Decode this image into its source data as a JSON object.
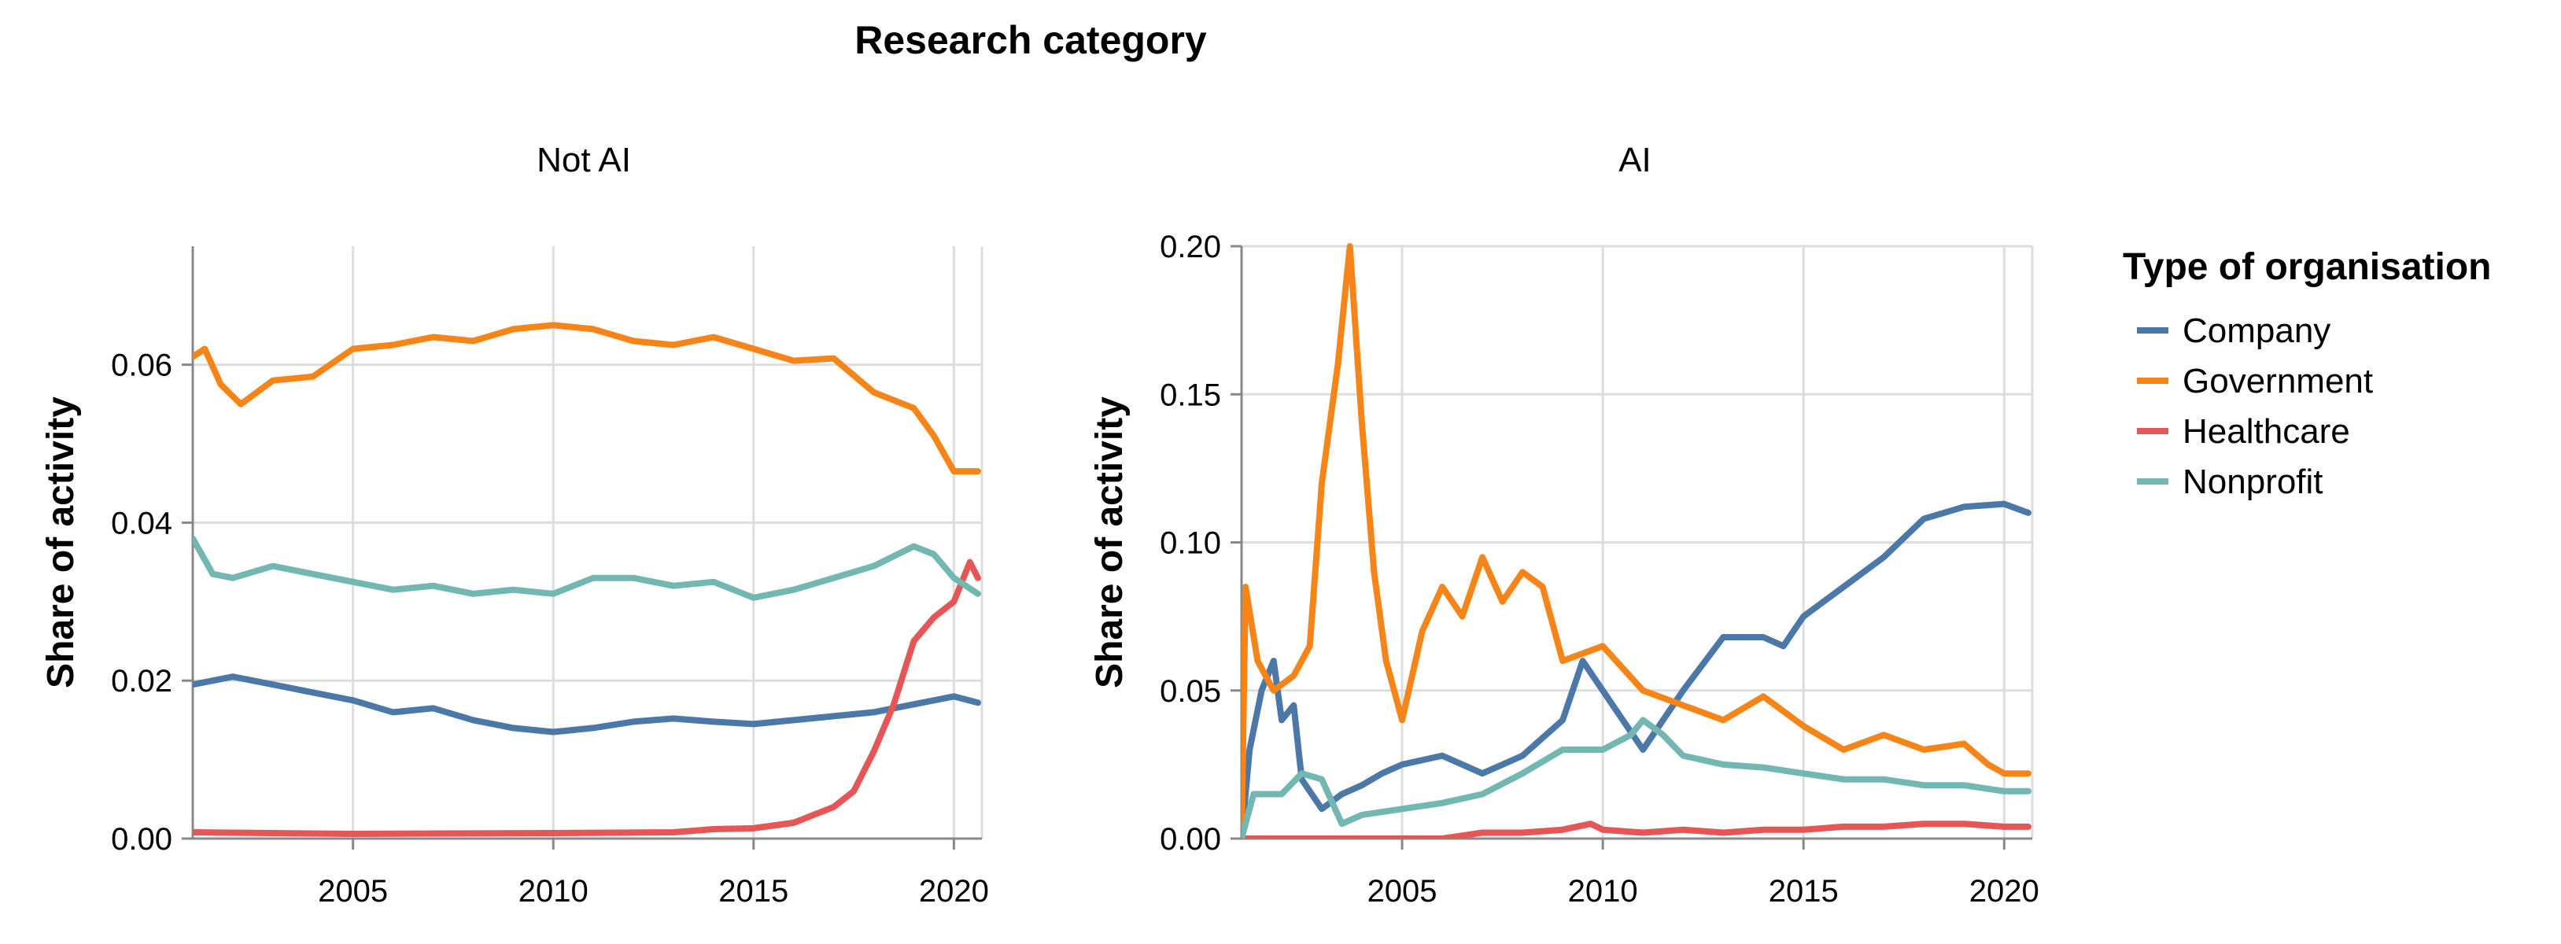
{
  "chart_data": {
    "type": "line",
    "title": "Research category",
    "legend": {
      "title": "Type of organisation",
      "position": "right",
      "entries": [
        {
          "name": "Company",
          "color": "#4c78a8"
        },
        {
          "name": "Government",
          "color": "#f58518"
        },
        {
          "name": "Healthcare",
          "color": "#e45756"
        },
        {
          "name": "Nonprofit",
          "color": "#72b7b2"
        }
      ]
    },
    "x": {
      "xlim": [
        2001,
        2020.7
      ],
      "ticks": [
        2005,
        2010,
        2015,
        2020
      ],
      "tick_labels": [
        "2005",
        "2010",
        "2015",
        "2020"
      ]
    },
    "facets": [
      {
        "label": "Not AI",
        "ylabel": "Share of activity",
        "ylim": [
          0,
          0.075
        ],
        "yticks": [
          0,
          0.02,
          0.04,
          0.06
        ],
        "ytick_labels": [
          "0.00",
          "0.02",
          "0.04",
          "0.06"
        ],
        "grid": true,
        "series": [
          {
            "name": "Company",
            "points": [
              [
                2001,
                0.0195
              ],
              [
                2002,
                0.0205
              ],
              [
                2003,
                0.0195
              ],
              [
                2004,
                0.0185
              ],
              [
                2005,
                0.0175
              ],
              [
                2006,
                0.016
              ],
              [
                2007,
                0.0165
              ],
              [
                2008,
                0.015
              ],
              [
                2009,
                0.014
              ],
              [
                2010,
                0.0135
              ],
              [
                2011,
                0.014
              ],
              [
                2012,
                0.0148
              ],
              [
                2013,
                0.0152
              ],
              [
                2014,
                0.0148
              ],
              [
                2015,
                0.0145
              ],
              [
                2016,
                0.015
              ],
              [
                2017,
                0.0155
              ],
              [
                2018,
                0.016
              ],
              [
                2019,
                0.017
              ],
              [
                2020,
                0.018
              ],
              [
                2020.6,
                0.0172
              ]
            ]
          },
          {
            "name": "Government",
            "points": [
              [
                2001,
                0.061
              ],
              [
                2001.3,
                0.062
              ],
              [
                2001.7,
                0.0575
              ],
              [
                2002.2,
                0.055
              ],
              [
                2003,
                0.058
              ],
              [
                2004,
                0.0585
              ],
              [
                2005,
                0.062
              ],
              [
                2006,
                0.0625
              ],
              [
                2007,
                0.0635
              ],
              [
                2008,
                0.063
              ],
              [
                2009,
                0.0645
              ],
              [
                2010,
                0.065
              ],
              [
                2011,
                0.0645
              ],
              [
                2012,
                0.063
              ],
              [
                2013,
                0.0625
              ],
              [
                2014,
                0.0635
              ],
              [
                2015,
                0.062
              ],
              [
                2016,
                0.0605
              ],
              [
                2017,
                0.0608
              ],
              [
                2018,
                0.0565
              ],
              [
                2019,
                0.0545
              ],
              [
                2019.5,
                0.051
              ],
              [
                2020,
                0.0465
              ],
              [
                2020.6,
                0.0465
              ]
            ]
          },
          {
            "name": "Healthcare",
            "points": [
              [
                2001,
                0.0008
              ],
              [
                2005,
                0.0006
              ],
              [
                2010,
                0.0007
              ],
              [
                2013,
                0.0008
              ],
              [
                2014,
                0.0012
              ],
              [
                2015,
                0.0013
              ],
              [
                2016,
                0.002
              ],
              [
                2016.5,
                0.003
              ],
              [
                2017,
                0.004
              ],
              [
                2017.5,
                0.006
              ],
              [
                2018,
                0.011
              ],
              [
                2018.5,
                0.017
              ],
              [
                2019,
                0.025
              ],
              [
                2019.5,
                0.028
              ],
              [
                2020,
                0.03
              ],
              [
                2020.4,
                0.035
              ],
              [
                2020.6,
                0.033
              ]
            ]
          },
          {
            "name": "Nonprofit",
            "points": [
              [
                2001,
                0.038
              ],
              [
                2001.5,
                0.0335
              ],
              [
                2002,
                0.033
              ],
              [
                2003,
                0.0345
              ],
              [
                2004,
                0.0335
              ],
              [
                2005,
                0.0325
              ],
              [
                2006,
                0.0315
              ],
              [
                2007,
                0.032
              ],
              [
                2008,
                0.031
              ],
              [
                2009,
                0.0315
              ],
              [
                2010,
                0.031
              ],
              [
                2011,
                0.033
              ],
              [
                2012,
                0.033
              ],
              [
                2013,
                0.032
              ],
              [
                2014,
                0.0325
              ],
              [
                2015,
                0.0305
              ],
              [
                2016,
                0.0315
              ],
              [
                2017,
                0.033
              ],
              [
                2018,
                0.0345
              ],
              [
                2019,
                0.037
              ],
              [
                2019.5,
                0.036
              ],
              [
                2020,
                0.033
              ],
              [
                2020.6,
                0.031
              ]
            ]
          }
        ]
      },
      {
        "label": "AI",
        "ylabel": "Share of activity",
        "ylim": [
          0,
          0.2
        ],
        "yticks": [
          0,
          0.05,
          0.1,
          0.15,
          0.2
        ],
        "ytick_labels": [
          "0.00",
          "0.05",
          "0.10",
          "0.15",
          "0.20"
        ],
        "grid": true,
        "series": [
          {
            "name": "Company",
            "points": [
              [
                2001,
                0.0
              ],
              [
                2001.2,
                0.03
              ],
              [
                2001.5,
                0.05
              ],
              [
                2001.8,
                0.06
              ],
              [
                2002,
                0.04
              ],
              [
                2002.3,
                0.045
              ],
              [
                2002.5,
                0.02
              ],
              [
                2003,
                0.01
              ],
              [
                2003.5,
                0.015
              ],
              [
                2004,
                0.018
              ],
              [
                2004.5,
                0.022
              ],
              [
                2005,
                0.025
              ],
              [
                2006,
                0.028
              ],
              [
                2007,
                0.022
              ],
              [
                2008,
                0.028
              ],
              [
                2009,
                0.04
              ],
              [
                2009.5,
                0.06
              ],
              [
                2010,
                0.05
              ],
              [
                2010.5,
                0.04
              ],
              [
                2011,
                0.03
              ],
              [
                2012,
                0.05
              ],
              [
                2013,
                0.068
              ],
              [
                2014,
                0.068
              ],
              [
                2014.5,
                0.065
              ],
              [
                2015,
                0.075
              ],
              [
                2016,
                0.085
              ],
              [
                2017,
                0.095
              ],
              [
                2018,
                0.108
              ],
              [
                2019,
                0.112
              ],
              [
                2020,
                0.113
              ],
              [
                2020.6,
                0.11
              ]
            ]
          },
          {
            "name": "Government",
            "points": [
              [
                2001,
                0.0
              ],
              [
                2001.1,
                0.085
              ],
              [
                2001.4,
                0.06
              ],
              [
                2001.8,
                0.05
              ],
              [
                2002.3,
                0.055
              ],
              [
                2002.7,
                0.065
              ],
              [
                2003,
                0.12
              ],
              [
                2003.4,
                0.16
              ],
              [
                2003.7,
                0.2
              ],
              [
                2004,
                0.14
              ],
              [
                2004.3,
                0.09
              ],
              [
                2004.6,
                0.06
              ],
              [
                2005,
                0.04
              ],
              [
                2005.5,
                0.07
              ],
              [
                2006,
                0.085
              ],
              [
                2006.5,
                0.075
              ],
              [
                2007,
                0.095
              ],
              [
                2007.5,
                0.08
              ],
              [
                2008,
                0.09
              ],
              [
                2008.5,
                0.085
              ],
              [
                2009,
                0.06
              ],
              [
                2010,
                0.065
              ],
              [
                2011,
                0.05
              ],
              [
                2012,
                0.045
              ],
              [
                2013,
                0.04
              ],
              [
                2014,
                0.048
              ],
              [
                2015,
                0.038
              ],
              [
                2016,
                0.03
              ],
              [
                2017,
                0.035
              ],
              [
                2018,
                0.03
              ],
              [
                2019,
                0.032
              ],
              [
                2019.6,
                0.025
              ],
              [
                2020,
                0.022
              ],
              [
                2020.6,
                0.022
              ]
            ]
          },
          {
            "name": "Healthcare",
            "points": [
              [
                2001,
                0.0
              ],
              [
                2006,
                0.0
              ],
              [
                2007,
                0.002
              ],
              [
                2008,
                0.002
              ],
              [
                2009,
                0.003
              ],
              [
                2009.7,
                0.005
              ],
              [
                2010,
                0.003
              ],
              [
                2011,
                0.002
              ],
              [
                2012,
                0.003
              ],
              [
                2013,
                0.002
              ],
              [
                2014,
                0.003
              ],
              [
                2015,
                0.003
              ],
              [
                2016,
                0.004
              ],
              [
                2017,
                0.004
              ],
              [
                2018,
                0.005
              ],
              [
                2019,
                0.005
              ],
              [
                2020,
                0.004
              ],
              [
                2020.6,
                0.004
              ]
            ]
          },
          {
            "name": "Nonprofit",
            "points": [
              [
                2001,
                0.0
              ],
              [
                2001.3,
                0.015
              ],
              [
                2002,
                0.015
              ],
              [
                2002.5,
                0.022
              ],
              [
                2003,
                0.02
              ],
              [
                2003.5,
                0.005
              ],
              [
                2004,
                0.008
              ],
              [
                2005,
                0.01
              ],
              [
                2006,
                0.012
              ],
              [
                2007,
                0.015
              ],
              [
                2008,
                0.022
              ],
              [
                2009,
                0.03
              ],
              [
                2010,
                0.03
              ],
              [
                2010.7,
                0.035
              ],
              [
                2011,
                0.04
              ],
              [
                2011.5,
                0.035
              ],
              [
                2012,
                0.028
              ],
              [
                2013,
                0.025
              ],
              [
                2014,
                0.024
              ],
              [
                2015,
                0.022
              ],
              [
                2016,
                0.02
              ],
              [
                2017,
                0.02
              ],
              [
                2018,
                0.018
              ],
              [
                2019,
                0.018
              ],
              [
                2020,
                0.016
              ],
              [
                2020.6,
                0.016
              ]
            ]
          }
        ]
      }
    ]
  }
}
